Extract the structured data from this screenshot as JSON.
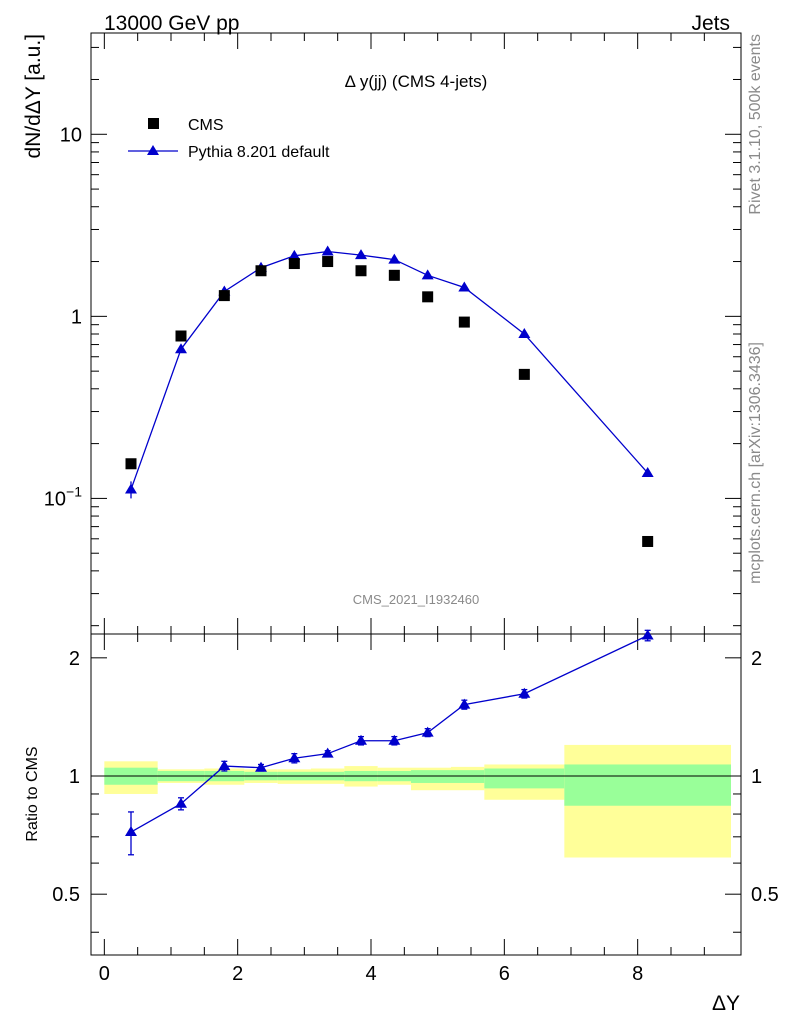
{
  "header": {
    "left": "13000 GeV pp",
    "right": "Jets"
  },
  "side": {
    "rivet": "Rivet 3.1.10,  500k events",
    "mcplots": "mcplots.cern.ch [arXiv:1306.3436]"
  },
  "chart_data": [
    {
      "type": "scatter",
      "panel": "main",
      "title": "Δ y(jj) (CMS 4-jets)",
      "ylabel": "dN/dΔY [a.u.]",
      "analysis_label": "CMS_2021_I1932460",
      "yscale": "log",
      "xlim": [
        -0.2,
        9.55
      ],
      "ylim": [
        0.018,
        36
      ],
      "y_tick_labels": [
        "10^-1",
        "1",
        "10"
      ],
      "legend_position": "top-left",
      "series": [
        {
          "name": "CMS",
          "marker": "square",
          "color": "#000000",
          "x": [
            0.4,
            1.15,
            1.8,
            2.35,
            2.85,
            3.35,
            3.85,
            4.35,
            4.85,
            5.4,
            6.3,
            8.15
          ],
          "y": [
            0.155,
            0.78,
            1.3,
            1.78,
            1.95,
            2.0,
            1.78,
            1.68,
            1.28,
            0.93,
            0.48,
            0.058
          ]
        },
        {
          "name": "Pythia 8.201 default",
          "marker": "triangle",
          "color": "#0000cc",
          "x": [
            0.4,
            1.15,
            1.8,
            2.35,
            2.85,
            3.35,
            3.85,
            4.35,
            4.85,
            5.4,
            6.3,
            8.15
          ],
          "y": [
            0.112,
            0.66,
            1.37,
            1.85,
            2.15,
            2.27,
            2.17,
            2.05,
            1.68,
            1.44,
            0.8,
            0.138
          ],
          "err": [
            0.012,
            0.02,
            0.03,
            0.03,
            0.03,
            0.03,
            0.03,
            0.03,
            0.03,
            0.03,
            0.02,
            0.006
          ]
        }
      ]
    },
    {
      "type": "line",
      "panel": "ratio",
      "xlabel": "ΔY",
      "ylabel": "Ratio to CMS",
      "xlim": [
        -0.2,
        9.55
      ],
      "ylim": [
        0.35,
        2.3
      ],
      "x_ticks": [
        0,
        2,
        4,
        6,
        8
      ],
      "y_ticks": [
        0.5,
        1,
        2
      ],
      "reference_line": 1,
      "bands": [
        {
          "x0": 0.0,
          "x1": 0.8,
          "inner": [
            0.95,
            1.05
          ],
          "outer": [
            0.9,
            1.09
          ]
        },
        {
          "x0": 0.8,
          "x1": 1.5,
          "inner": [
            0.97,
            1.03
          ],
          "outer": [
            0.96,
            1.04
          ]
        },
        {
          "x0": 1.5,
          "x1": 2.1,
          "inner": [
            0.97,
            1.03
          ],
          "outer": [
            0.95,
            1.045
          ]
        },
        {
          "x0": 2.1,
          "x1": 2.6,
          "inner": [
            0.975,
            1.025
          ],
          "outer": [
            0.96,
            1.04
          ]
        },
        {
          "x0": 2.6,
          "x1": 3.1,
          "inner": [
            0.975,
            1.025
          ],
          "outer": [
            0.955,
            1.04
          ]
        },
        {
          "x0": 3.1,
          "x1": 3.6,
          "inner": [
            0.975,
            1.025
          ],
          "outer": [
            0.955,
            1.045
          ]
        },
        {
          "x0": 3.6,
          "x1": 4.1,
          "inner": [
            0.97,
            1.03
          ],
          "outer": [
            0.94,
            1.06
          ]
        },
        {
          "x0": 4.1,
          "x1": 4.6,
          "inner": [
            0.97,
            1.03
          ],
          "outer": [
            0.95,
            1.05
          ]
        },
        {
          "x0": 4.6,
          "x1": 5.2,
          "inner": [
            0.96,
            1.035
          ],
          "outer": [
            0.92,
            1.05
          ]
        },
        {
          "x0": 5.2,
          "x1": 5.7,
          "inner": [
            0.96,
            1.035
          ],
          "outer": [
            0.92,
            1.055
          ]
        },
        {
          "x0": 5.7,
          "x1": 6.9,
          "inner": [
            0.93,
            1.045
          ],
          "outer": [
            0.87,
            1.07
          ]
        },
        {
          "x0": 6.9,
          "x1": 9.4,
          "inner": [
            0.84,
            1.07
          ],
          "outer": [
            0.62,
            1.2
          ]
        }
      ],
      "series": [
        {
          "name": "Pythia 8.201 default",
          "color": "#0000cc",
          "x": [
            0.4,
            1.15,
            1.8,
            2.35,
            2.85,
            3.35,
            3.85,
            4.35,
            4.85,
            5.4,
            6.3,
            8.15
          ],
          "y": [
            0.72,
            0.85,
            1.06,
            1.05,
            1.11,
            1.14,
            1.23,
            1.23,
            1.29,
            1.52,
            1.62,
            2.28
          ],
          "err": [
            0.09,
            0.03,
            0.03,
            0.02,
            0.03,
            0.02,
            0.03,
            0.03,
            0.03,
            0.04,
            0.04,
            0.07
          ]
        }
      ]
    }
  ]
}
